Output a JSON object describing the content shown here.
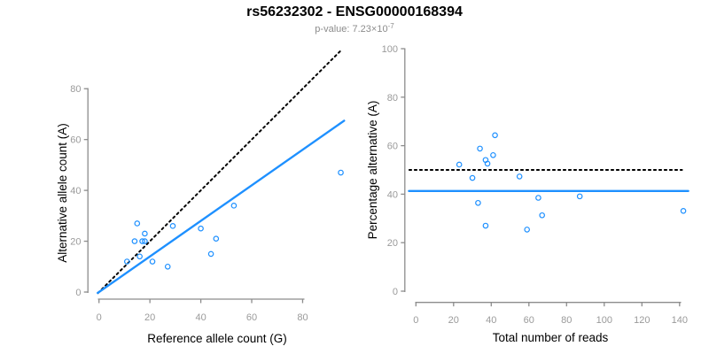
{
  "header": {
    "title": "rs56232302 - ENSG00000168394",
    "subtitle": {
      "label": "p-value: 7.23×10",
      "exponent": "-7"
    }
  },
  "colors": {
    "accent_blue": "#1E90FF",
    "dotted_line_black": "#000000",
    "axis_gray": "#8c8c8c",
    "tick_label_gray": "#9a9a9a",
    "axis_title_black": "#000000",
    "title_black": "#000000",
    "subtitle_gray": "#8c8c8c",
    "background": "#ffffff"
  },
  "chart_data": [
    {
      "type": "scatter",
      "panel": "left",
      "title": "",
      "xlabel": "Reference allele count (G)",
      "ylabel": "Alternative allele count (A)",
      "xlim": [
        0,
        95
      ],
      "ylim": [
        0,
        95
      ],
      "xticks": [
        0,
        20,
        40,
        60,
        80
      ],
      "yticks": [
        0,
        20,
        40,
        60,
        80
      ],
      "grid": false,
      "marker": "open-circle",
      "points": [
        [
          11,
          12
        ],
        [
          14,
          20
        ],
        [
          15,
          27
        ],
        [
          16,
          14
        ],
        [
          17,
          20
        ],
        [
          18,
          20
        ],
        [
          18,
          23
        ],
        [
          21,
          12
        ],
        [
          27,
          10
        ],
        [
          29,
          26
        ],
        [
          40,
          25
        ],
        [
          44,
          15
        ],
        [
          46,
          21
        ],
        [
          53,
          34
        ],
        [
          95,
          47
        ]
      ],
      "lines": [
        {
          "name": "identity-line",
          "style": "dotted",
          "color_key": "dotted_line_black",
          "from": [
            -0.4,
            -0.4
          ],
          "to": [
            95,
            95
          ]
        },
        {
          "name": "fit-line",
          "style": "solid",
          "color_key": "accent_blue",
          "from": [
            -0.5,
            -0.35
          ],
          "to": [
            96.3,
            67.4
          ]
        }
      ]
    },
    {
      "type": "scatter",
      "panel": "right",
      "title": "",
      "xlabel": "Total number of reads",
      "ylabel": "Percentage alternative (A)",
      "xlim": [
        0,
        143
      ],
      "ylim": [
        0,
        100
      ],
      "xticks": [
        0,
        20,
        40,
        60,
        80,
        100,
        120,
        140
      ],
      "yticks": [
        0,
        20,
        40,
        60,
        80,
        100
      ],
      "grid": false,
      "marker": "open-circle",
      "points": [
        [
          23,
          52.2
        ],
        [
          30,
          46.7
        ],
        [
          33,
          36.4
        ],
        [
          34,
          58.8
        ],
        [
          37,
          54.1
        ],
        [
          37,
          27.0
        ],
        [
          38,
          52.6
        ],
        [
          41,
          56.1
        ],
        [
          42,
          64.3
        ],
        [
          55,
          47.3
        ],
        [
          59,
          25.4
        ],
        [
          65,
          38.5
        ],
        [
          67,
          31.3
        ],
        [
          87,
          39.1
        ],
        [
          142,
          33.1
        ]
      ],
      "lines": [
        {
          "name": "expected-50pct-line",
          "style": "dotted",
          "color_key": "dotted_line_black",
          "from": [
            -3.5,
            50
          ],
          "to": [
            141.3,
            50
          ]
        },
        {
          "name": "mean-percentage-line",
          "style": "solid",
          "color_key": "accent_blue",
          "from": [
            -3.7,
            41.3
          ],
          "to": [
            144.6,
            41.3
          ]
        }
      ]
    }
  ]
}
